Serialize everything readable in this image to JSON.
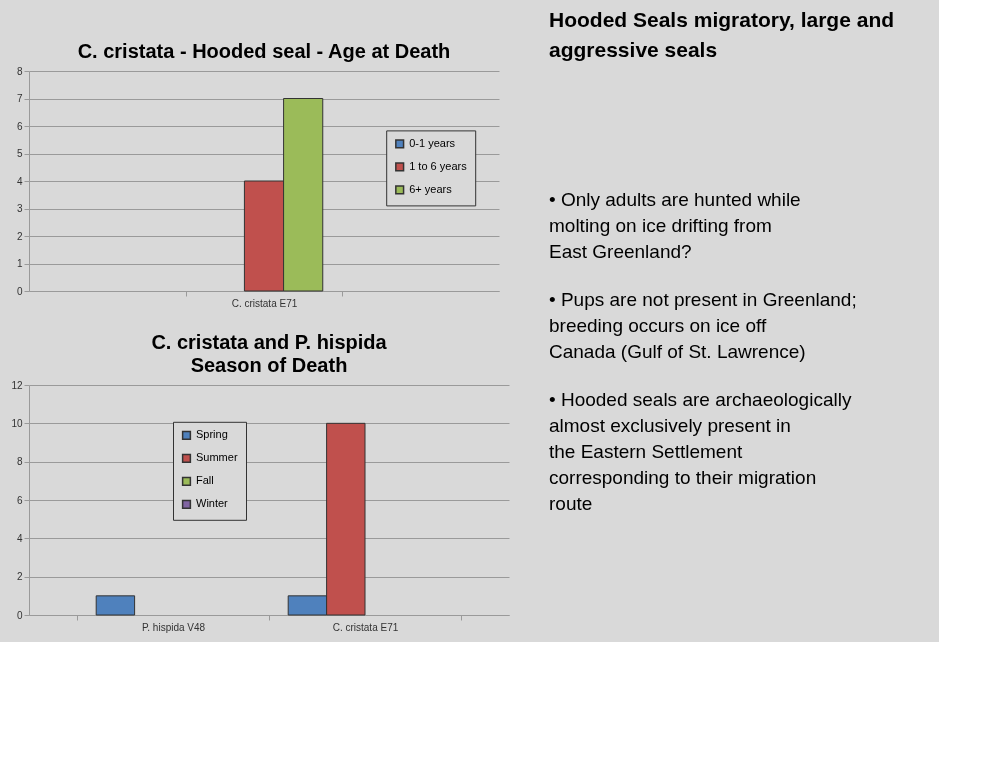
{
  "chart_data": [
    {
      "type": "bar",
      "title": "C. cristata - Hooded seal - Age at Death",
      "categories": [
        "C. cristata E71"
      ],
      "series": [
        {
          "name": "0-1 years",
          "color": "#4f81bd",
          "values": [
            0
          ]
        },
        {
          "name": "1 to 6 years",
          "color": "#c0504d",
          "values": [
            4
          ]
        },
        {
          "name": "6+ years",
          "color": "#9bbb59",
          "values": [
            7
          ]
        }
      ],
      "ylim": [
        0,
        8
      ],
      "yticks": [
        0,
        1,
        2,
        3,
        4,
        5,
        6,
        7,
        8
      ],
      "grid": "y",
      "legend": "right"
    },
    {
      "type": "bar",
      "title": "C. cristata and P. hispida",
      "subtitle": "Season of Death",
      "categories": [
        "P. hispida V48",
        "C. cristata E71"
      ],
      "series": [
        {
          "name": "Spring",
          "color": "#4f81bd",
          "values": [
            1,
            1
          ]
        },
        {
          "name": "Summer",
          "color": "#c0504d",
          "values": [
            0,
            10
          ]
        },
        {
          "name": "Fall",
          "color": "#9bbb59",
          "values": [
            0,
            0
          ]
        },
        {
          "name": "Winter",
          "color": "#8064a2",
          "values": [
            0,
            0
          ]
        }
      ],
      "ylim": [
        0,
        12
      ],
      "yticks": [
        0,
        2,
        4,
        6,
        8,
        10,
        12
      ],
      "grid": "y",
      "legend": "top left"
    },
    {
      "type": "other",
      "title": "Hooded Seals migratory, large and aggressive seals",
      "annotations": [
        "• Only adults are hunted while molting on ice drifting from East Greenland?",
        "• Pups are not present in Greenland; breeding occurs on ice off Canada (Gulf of St. Lawrence)",
        "• Hooded seals are archaeologically almost exclusively present in the Eastern Settlement corresponding to their migration route"
      ]
    }
  ]
}
